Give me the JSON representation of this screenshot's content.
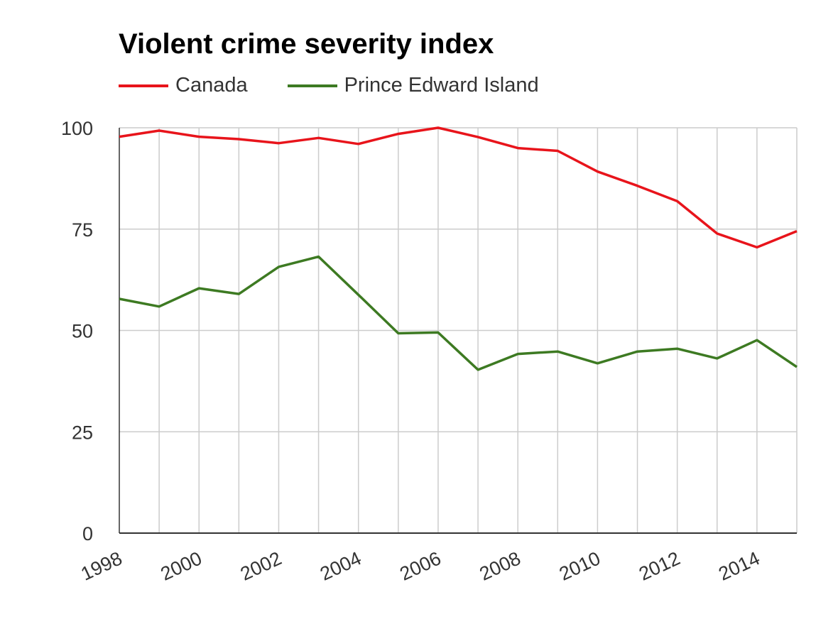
{
  "chart_data": {
    "type": "line",
    "title": "Violent crime severity index",
    "xlabel": "",
    "ylabel": "",
    "x": [
      1998,
      1999,
      2000,
      2001,
      2002,
      2003,
      2004,
      2005,
      2006,
      2007,
      2008,
      2009,
      2010,
      2011,
      2012,
      2013,
      2014,
      2015
    ],
    "xlim": [
      1998,
      2015
    ],
    "ylim": [
      0,
      100
    ],
    "x_ticks": [
      "1998",
      "2000",
      "2002",
      "2004",
      "2006",
      "2008",
      "2010",
      "2012",
      "2014"
    ],
    "y_ticks": [
      "0",
      "25",
      "50",
      "75",
      "100"
    ],
    "grid": true,
    "legend_position": "top-left",
    "series": [
      {
        "name": "Canada",
        "color": "#e8141b",
        "values": [
          97.8,
          99.3,
          97.8,
          97.2,
          96.2,
          97.5,
          96.0,
          98.5,
          100.0,
          97.7,
          95.0,
          94.3,
          89.2,
          85.7,
          81.9,
          73.9,
          70.5,
          74.5
        ]
      },
      {
        "name": "Prince Edward Island",
        "color": "#3d7a22",
        "values": [
          57.8,
          55.9,
          60.4,
          59.0,
          65.7,
          68.2,
          58.8,
          49.3,
          49.5,
          40.3,
          44.2,
          44.8,
          41.9,
          44.8,
          45.5,
          43.1,
          47.6,
          41.0
        ]
      }
    ]
  }
}
